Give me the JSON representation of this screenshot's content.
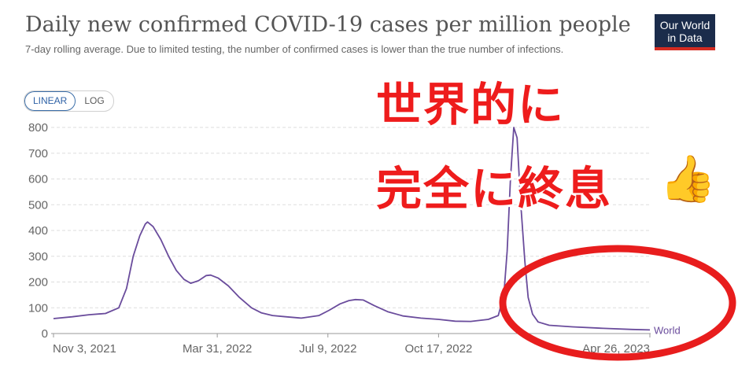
{
  "header": {
    "title": "Daily new confirmed COVID-19 cases per million people",
    "subtitle": "7-day rolling average. Due to limited testing, the number of confirmed cases is lower than the true number of infections.",
    "logo_line1": "Our World",
    "logo_line2": "in Data"
  },
  "scale_toggle": {
    "linear_label": "LINEAR",
    "log_label": "LOG",
    "selected": "LINEAR"
  },
  "overlay_text": {
    "line1": "世界的に",
    "line2": "完全に終息",
    "thumb_icon": "thumbs-up-icon"
  },
  "colors": {
    "line": "#6a4c9c",
    "grid": "#dddddd",
    "overlay_red": "#ee1c1c",
    "ellipse_red": "#e81d1d",
    "logo_bg": "#1b2c4b"
  },
  "chart_data": {
    "type": "line",
    "title": "Daily new confirmed COVID-19 cases per million people",
    "subtitle": "7-day rolling average. Due to limited testing, the number of confirmed cases is lower than the true number of infections.",
    "ylim": [
      0,
      800
    ],
    "y_ticks": [
      "0",
      "100",
      "200",
      "300",
      "400",
      "500",
      "600",
      "700",
      "800"
    ],
    "x_ticks": [
      "Nov 3, 2021",
      "Mar 31, 2022",
      "Jul 9, 2022",
      "Oct 17, 2022",
      "Apr 26, 2023"
    ],
    "x_range": [
      "2021-11-03",
      "2023-04-26"
    ],
    "grid": true,
    "series": [
      {
        "name": "World",
        "points": [
          [
            "2021-11-03",
            58
          ],
          [
            "2021-11-20",
            65
          ],
          [
            "2021-12-05",
            73
          ],
          [
            "2021-12-20",
            78
          ],
          [
            "2022-01-01",
            100
          ],
          [
            "2022-01-08",
            175
          ],
          [
            "2022-01-14",
            300
          ],
          [
            "2022-01-20",
            380
          ],
          [
            "2022-01-25",
            425
          ],
          [
            "2022-01-27",
            433
          ],
          [
            "2022-02-01",
            415
          ],
          [
            "2022-02-08",
            365
          ],
          [
            "2022-02-15",
            300
          ],
          [
            "2022-02-22",
            245
          ],
          [
            "2022-03-01",
            210
          ],
          [
            "2022-03-07",
            195
          ],
          [
            "2022-03-14",
            205
          ],
          [
            "2022-03-21",
            225
          ],
          [
            "2022-03-25",
            227
          ],
          [
            "2022-04-01",
            215
          ],
          [
            "2022-04-10",
            185
          ],
          [
            "2022-04-20",
            140
          ],
          [
            "2022-05-01",
            100
          ],
          [
            "2022-05-10",
            80
          ],
          [
            "2022-05-20",
            70
          ],
          [
            "2022-06-01",
            65
          ],
          [
            "2022-06-15",
            60
          ],
          [
            "2022-07-01",
            70
          ],
          [
            "2022-07-10",
            90
          ],
          [
            "2022-07-20",
            115
          ],
          [
            "2022-07-28",
            128
          ],
          [
            "2022-08-03",
            132
          ],
          [
            "2022-08-10",
            130
          ],
          [
            "2022-08-20",
            108
          ],
          [
            "2022-09-01",
            85
          ],
          [
            "2022-09-15",
            68
          ],
          [
            "2022-10-01",
            60
          ],
          [
            "2022-10-17",
            55
          ],
          [
            "2022-11-01",
            48
          ],
          [
            "2022-11-15",
            47
          ],
          [
            "2022-12-01",
            55
          ],
          [
            "2022-12-10",
            70
          ],
          [
            "2022-12-15",
            150
          ],
          [
            "2022-12-18",
            320
          ],
          [
            "2022-12-21",
            600
          ],
          [
            "2022-12-24",
            800
          ],
          [
            "2022-12-27",
            760
          ],
          [
            "2022-12-30",
            520
          ],
          [
            "2023-01-03",
            280
          ],
          [
            "2023-01-06",
            140
          ],
          [
            "2023-01-10",
            75
          ],
          [
            "2023-01-15",
            45
          ],
          [
            "2023-01-25",
            32
          ],
          [
            "2023-02-15",
            26
          ],
          [
            "2023-03-15",
            20
          ],
          [
            "2023-04-10",
            16
          ],
          [
            "2023-04-26",
            14
          ]
        ]
      }
    ]
  }
}
